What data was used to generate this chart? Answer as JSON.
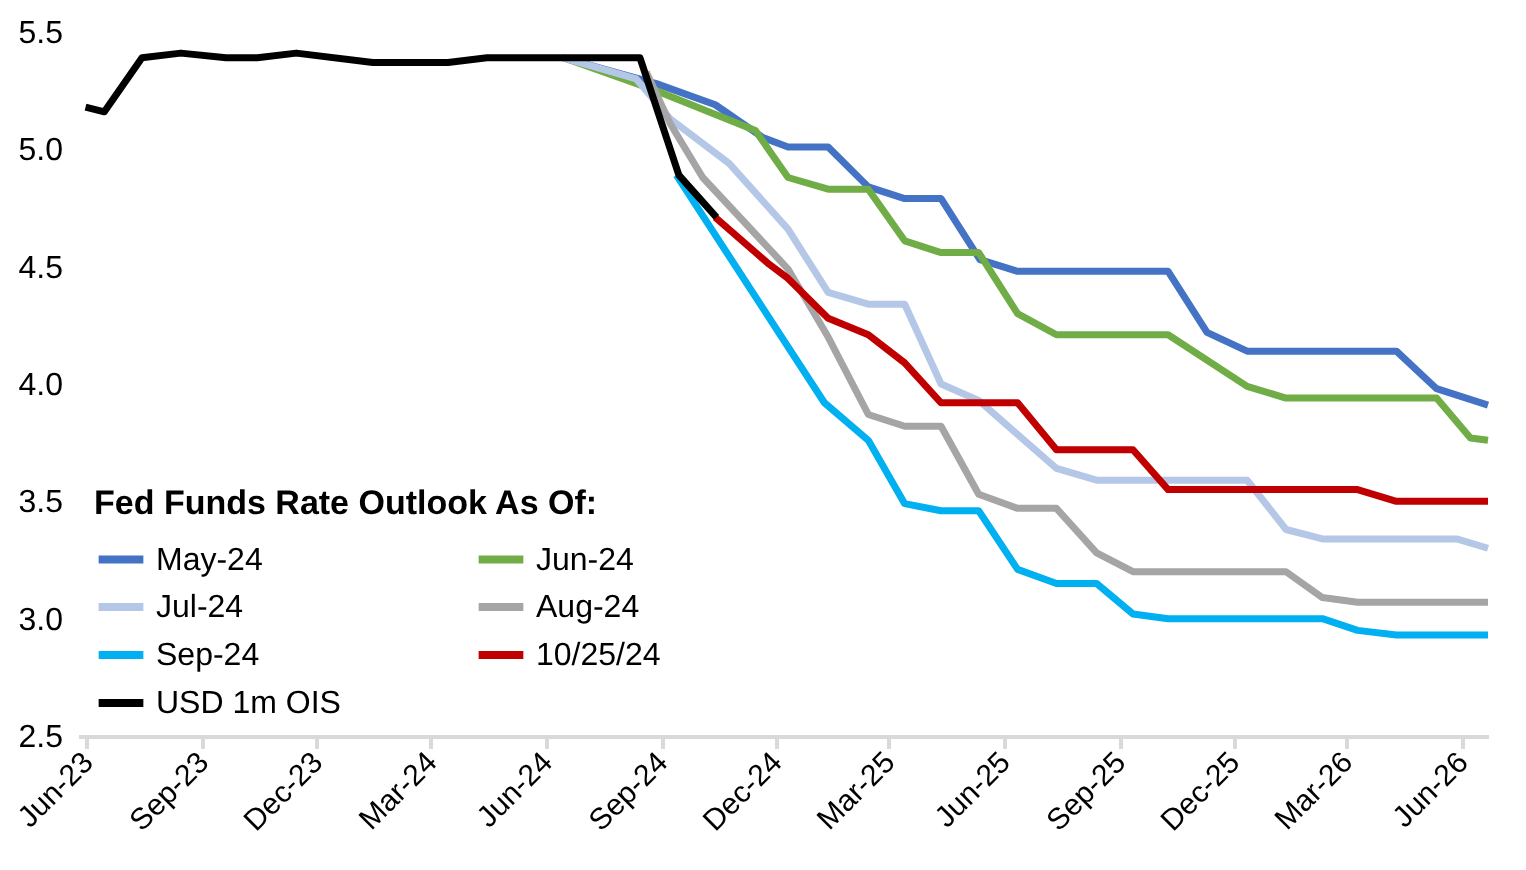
{
  "chart_data": {
    "type": "line",
    "legend_title": "Fed Funds Rate Outlook As Of:",
    "legend": "bottom left",
    "xlim": [
      "2023-05-25",
      "2026-06-22"
    ],
    "xticks": [
      {
        "value": "2023-06-01",
        "label": "Jun-23"
      },
      {
        "value": "2023-09-01",
        "label": "Sep-23"
      },
      {
        "value": "2023-12-01",
        "label": "Dec-23"
      },
      {
        "value": "2024-03-01",
        "label": "Mar-24"
      },
      {
        "value": "2024-06-01",
        "label": "Jun-24"
      },
      {
        "value": "2024-09-01",
        "label": "Sep-24"
      },
      {
        "value": "2024-12-01",
        "label": "Dec-24"
      },
      {
        "value": "2025-03-01",
        "label": "Mar-25"
      },
      {
        "value": "2025-06-01",
        "label": "Jun-25"
      },
      {
        "value": "2025-09-01",
        "label": "Sep-25"
      },
      {
        "value": "2025-12-01",
        "label": "Dec-25"
      },
      {
        "value": "2026-03-01",
        "label": "Mar-26"
      },
      {
        "value": "2026-06-01",
        "label": "Jun-26"
      }
    ],
    "ylim": [
      2.5,
      5.5
    ],
    "yticks": [
      {
        "value": 2.5,
        "label": "2.5"
      },
      {
        "value": 3,
        "label": "3.0"
      },
      {
        "value": 3.5,
        "label": "3.5"
      },
      {
        "value": 4,
        "label": "4.0"
      },
      {
        "value": 4.5,
        "label": "4.5"
      },
      {
        "value": 5,
        "label": "5.0"
      },
      {
        "value": 5.5,
        "label": "5.5"
      }
    ],
    "series": [
      {
        "name": "May-24",
        "color": "#4472c4",
        "x": [
          "2024-06-15",
          "2024-08-28",
          "2024-10-14",
          "2024-11-21",
          "2024-12-11",
          "2025-01-12",
          "2025-02-13",
          "2025-03-14",
          "2025-04-12",
          "2025-05-13",
          "2025-06-12",
          "2025-10-10",
          "2025-11-10",
          "2025-12-12",
          "2026-04-10",
          "2026-05-12",
          "2026-06-22"
        ],
        "values": [
          5.39,
          5.28,
          5.19,
          5.05,
          5.01,
          5.01,
          4.84,
          4.79,
          4.79,
          4.53,
          4.48,
          4.48,
          4.22,
          4.14,
          4.14,
          3.98,
          3.91
        ]
      },
      {
        "name": "Jun-24",
        "color": "#70ad47",
        "x": [
          "2024-06-15",
          "2024-08-28",
          "2024-11-15",
          "2024-12-11",
          "2025-01-12",
          "2025-02-13",
          "2025-03-14",
          "2025-04-12",
          "2025-05-12",
          "2025-06-12",
          "2025-07-13",
          "2025-10-10",
          "2025-12-12",
          "2026-01-12",
          "2026-05-12",
          "2026-06-08",
          "2026-06-22"
        ],
        "values": [
          5.39,
          5.25,
          5.08,
          4.88,
          4.83,
          4.83,
          4.61,
          4.56,
          4.56,
          4.3,
          4.21,
          4.21,
          3.99,
          3.94,
          3.94,
          3.77,
          3.76
        ]
      },
      {
        "name": "Jul-24",
        "color": "#b4c7e7",
        "x": [
          "2024-06-15",
          "2024-08-12",
          "2024-09-08",
          "2024-10-25",
          "2024-12-11",
          "2025-01-12",
          "2025-02-13",
          "2025-03-14",
          "2025-04-12",
          "2025-05-12",
          "2025-07-13",
          "2025-08-14",
          "2025-12-12",
          "2026-01-12",
          "2026-02-10",
          "2026-05-28",
          "2026-06-22"
        ],
        "values": [
          5.39,
          5.3,
          5.13,
          4.94,
          4.66,
          4.39,
          4.34,
          4.34,
          4.0,
          3.93,
          3.64,
          3.59,
          3.59,
          3.38,
          3.34,
          3.34,
          3.3
        ]
      },
      {
        "name": "Aug-24",
        "color": "#a5a5a5",
        "x": [
          "2024-08-20",
          "2024-09-08",
          "2024-10-04",
          "2024-12-11",
          "2025-01-12",
          "2025-02-13",
          "2025-03-14",
          "2025-04-12",
          "2025-05-12",
          "2025-06-12",
          "2025-07-13",
          "2025-08-14",
          "2025-09-12",
          "2026-01-12",
          "2026-02-10",
          "2026-03-10",
          "2026-06-22"
        ],
        "values": [
          5.33,
          5.11,
          4.88,
          4.49,
          4.2,
          3.87,
          3.82,
          3.82,
          3.53,
          3.47,
          3.47,
          3.28,
          3.2,
          3.2,
          3.09,
          3.07,
          3.07
        ]
      },
      {
        "name": "Sep-24",
        "color": "#00b0f0",
        "x": [
          "2024-09-13",
          "2025-01-09",
          "2025-02-13",
          "2025-03-14",
          "2025-04-12",
          "2025-05-12",
          "2025-06-12",
          "2025-07-13",
          "2025-08-14",
          "2025-09-12",
          "2025-10-10",
          "2026-02-10",
          "2026-03-10",
          "2026-04-10",
          "2026-06-22"
        ],
        "values": [
          4.89,
          3.92,
          3.76,
          3.49,
          3.46,
          3.46,
          3.21,
          3.15,
          3.15,
          3.02,
          3.0,
          3.0,
          2.95,
          2.93,
          2.93
        ]
      },
      {
        "name": "10/25/24",
        "color": "#c00000",
        "x": [
          "2024-10-14",
          "2024-11-26",
          "2024-12-11",
          "2025-01-12",
          "2025-02-13",
          "2025-03-14",
          "2025-04-12",
          "2025-06-12",
          "2025-07-13",
          "2025-09-12",
          "2025-10-10",
          "2026-03-10",
          "2026-04-10",
          "2026-06-22"
        ],
        "values": [
          4.71,
          4.51,
          4.45,
          4.28,
          4.21,
          4.09,
          3.92,
          3.92,
          3.72,
          3.72,
          3.55,
          3.55,
          3.5,
          3.5
        ]
      },
      {
        "name": "USD 1m OIS",
        "color": "#000000",
        "x": [
          "2023-05-31",
          "2023-06-15",
          "2023-07-15",
          "2023-08-15",
          "2023-09-20",
          "2023-10-15",
          "2023-11-15",
          "2024-01-15",
          "2024-03-15",
          "2024-04-15",
          "2024-08-15",
          "2024-09-15",
          "2024-10-15"
        ],
        "values": [
          5.18,
          5.16,
          5.39,
          5.41,
          5.39,
          5.39,
          5.41,
          5.37,
          5.37,
          5.39,
          5.39,
          4.89,
          4.71
        ]
      }
    ]
  }
}
